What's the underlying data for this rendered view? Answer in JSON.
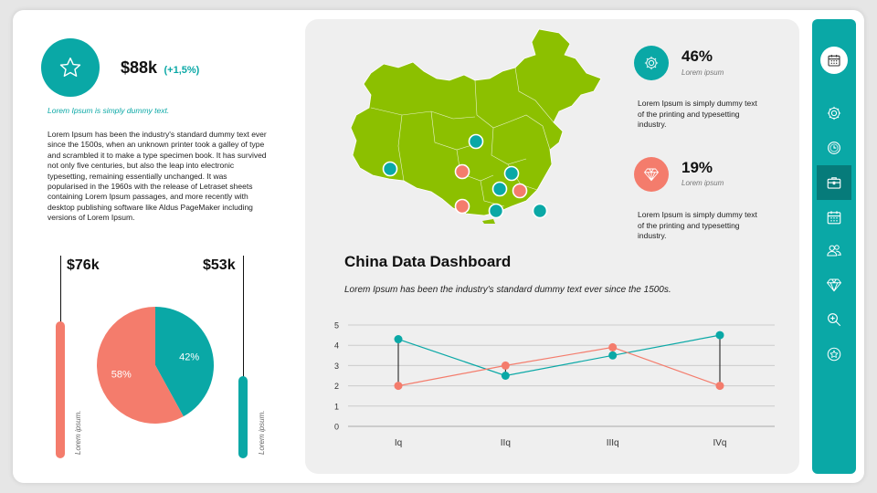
{
  "kpi": {
    "value": "$88k",
    "delta": "(+1,5%)",
    "icon": "star-icon"
  },
  "intro": {
    "subtitle": "Lorem Ipsum is simply dummy text.",
    "body": "Lorem Ipsum has been the industry's standard dummy text ever since the 1500s, when an unknown printer took a galley of type and scrambled it to make a type specimen book. It has survived not only five centuries, but also the leap into electronic typesetting, remaining essentially unchanged. It was popularised in the 1960s with the release of Letraset sheets containing Lorem Ipsum passages, and more recently with desktop publishing software like Aldus PageMaker including versions of Lorem Ipsum."
  },
  "left_bars": [
    {
      "value": "$76k",
      "label": "Lorem ipsum.",
      "color": "#f47c6c",
      "level": 0.73
    },
    {
      "value": "$53k",
      "label": "Lorem ipsum.",
      "color": "#0aa8a6",
      "level": 0.42
    }
  ],
  "stats": [
    {
      "pct": "46%",
      "sub": "Lorem ipsum",
      "desc": "Lorem Ipsum is simply dummy text of the printing and typesetting industry.",
      "icon": "gear-icon",
      "color": "#0aa8a6"
    },
    {
      "pct": "19%",
      "sub": "Lorem ipsum",
      "desc": "Lorem Ipsum is simply dummy text of the printing and typesetting industry.",
      "icon": "diamond-icon",
      "color": "#f47c6c"
    }
  ],
  "dashboard": {
    "title": "China Data Dashboard",
    "subtitle": "Lorem Ipsum has been the industry's standard dummy text ever since the 1500s."
  },
  "map": {
    "fill": "#8cc000",
    "pins": [
      "#0aa8a6",
      "#f47c6c"
    ]
  },
  "sidebar": {
    "icons": [
      "calendar-icon",
      "gear-icon",
      "clock-icon",
      "briefcase-icon",
      "calendar-grid-icon",
      "people-icon",
      "diamond-icon",
      "zoom-in-icon",
      "star-icon"
    ],
    "active_index": 3
  },
  "colors": {
    "teal": "#0aa8a6",
    "coral": "#f47c6c",
    "map_green": "#8cc000"
  },
  "chart_data": [
    {
      "type": "pie",
      "slices": [
        {
          "label": "42%",
          "value": 42,
          "color": "#0aa8a6"
        },
        {
          "label": "58%",
          "value": 58,
          "color": "#f47c6c"
        }
      ]
    },
    {
      "type": "line",
      "categories": [
        "Iq",
        "IIq",
        "IIIq",
        "IVq"
      ],
      "ylim": [
        0,
        5
      ],
      "yticks": [
        0,
        1,
        2,
        3,
        4,
        5
      ],
      "grid": true,
      "series": [
        {
          "values": [
            4.3,
            2.5,
            3.5,
            4.5
          ],
          "color": "#0aa8a6"
        },
        {
          "values": [
            2.0,
            3.0,
            3.9,
            2.0
          ],
          "color": "#f47c6c"
        }
      ]
    }
  ]
}
